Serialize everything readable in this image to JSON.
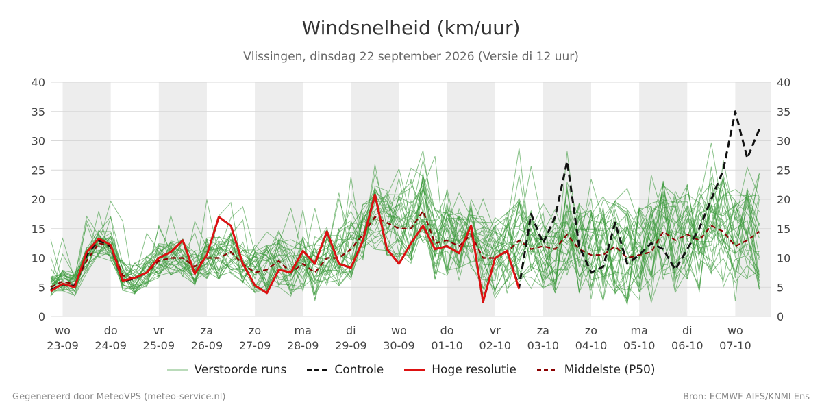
{
  "title": "Windsnelheid (km/uur)",
  "subtitle": "Vlissingen, dinsdag 22 september 2026 (Versie di 12 uur)",
  "footer_left": "Gegenereerd door MeteoVPS (meteo-service.nl)",
  "footer_right": "Bron: ECMWF AIFS/KNMI Ens",
  "legend": [
    {
      "label": "Verstoorde runs",
      "color": "#3a9a3a",
      "style": "thin"
    },
    {
      "label": "Controle",
      "color": "#111111",
      "style": "dashed"
    },
    {
      "label": "Hoge resolutie",
      "color": "#dd1111",
      "style": "solid"
    },
    {
      "label": "Middelste (P50)",
      "color": "#8b0000",
      "style": "dashed"
    }
  ],
  "chart_data": {
    "type": "line",
    "ylim": [
      0,
      40
    ],
    "yticks": [
      0,
      5,
      10,
      15,
      20,
      25,
      30,
      35,
      40
    ],
    "xlim": [
      -0.25,
      14.75
    ],
    "grid": true,
    "x_ticks": [
      {
        "day": "wo",
        "date": "23-09"
      },
      {
        "day": "do",
        "date": "24-09"
      },
      {
        "day": "vr",
        "date": "25-09"
      },
      {
        "day": "za",
        "date": "26-09"
      },
      {
        "day": "zo",
        "date": "27-09"
      },
      {
        "day": "ma",
        "date": "28-09"
      },
      {
        "day": "di",
        "date": "29-09"
      },
      {
        "day": "wo",
        "date": "30-09"
      },
      {
        "day": "do",
        "date": "01-10"
      },
      {
        "day": "vr",
        "date": "02-10"
      },
      {
        "day": "za",
        "date": "03-10"
      },
      {
        "day": "zo",
        "date": "04-10"
      },
      {
        "day": "ma",
        "date": "05-10"
      },
      {
        "day": "di",
        "date": "06-10"
      },
      {
        "day": "wo",
        "date": "07-10"
      }
    ],
    "ensemble_member_count": 30,
    "series": [
      {
        "name": "Hoge resolutie",
        "color": "#dd1111",
        "x": [
          -0.25,
          0,
          0.25,
          0.5,
          0.75,
          1,
          1.25,
          1.5,
          1.75,
          2,
          2.25,
          2.5,
          2.75,
          3,
          3.25,
          3.5,
          3.75,
          4,
          4.25,
          4.5,
          4.75,
          5,
          5.25,
          5.5,
          5.75,
          6,
          6.25,
          6.5,
          6.75,
          7,
          7.25,
          7.5,
          7.75,
          8,
          8.25,
          8.5,
          8.75,
          9,
          9.25,
          9.5
        ],
        "y": [
          4.3,
          5.6,
          5.0,
          11.0,
          13.3,
          12.2,
          6.1,
          6.6,
          7.5,
          10.0,
          11.0,
          13.0,
          7.3,
          10.5,
          17.0,
          15.5,
          9.0,
          5.3,
          4.0,
          8.0,
          7.5,
          11.2,
          9.0,
          14.5,
          9.0,
          8.3,
          13.0,
          20.8,
          11.5,
          9.0,
          12.5,
          15.5,
          11.5,
          12.0,
          10.8,
          15.5,
          2.5,
          10.0,
          11.2,
          4.7
        ]
      },
      {
        "name": "Controle",
        "color": "#111111",
        "x": [
          -0.25,
          0,
          0.25,
          0.5,
          0.75,
          1,
          1.25,
          1.5,
          1.75,
          2,
          2.25,
          2.5,
          2.75,
          3,
          3.25,
          3.5,
          3.75,
          4,
          4.25,
          4.5,
          4.75,
          5,
          5.25,
          5.5,
          5.75,
          6,
          6.25,
          6.5,
          6.75,
          7,
          7.25,
          7.5,
          7.75,
          8,
          8.25,
          8.5,
          8.75,
          9,
          9.25,
          9.5,
          9.75,
          10,
          10.25,
          10.5,
          10.75,
          11,
          11.25,
          11.5,
          11.75,
          12,
          12.25,
          12.5,
          12.75,
          13,
          13.25,
          13.5,
          13.75,
          14,
          14.25,
          14.5
        ],
        "y": [
          4.5,
          5.5,
          5.2,
          10.5,
          13.0,
          12.0,
          6.0,
          6.5,
          7.5,
          10.0,
          11.0,
          13.0,
          7.3,
          10.5,
          17.0,
          15.5,
          9.0,
          5.3,
          4.0,
          8.0,
          7.5,
          11.2,
          9.0,
          14.5,
          9.0,
          8.3,
          13.0,
          20.8,
          11.5,
          9.0,
          12.5,
          15.5,
          11.5,
          12.0,
          10.8,
          15.5,
          2.5,
          10.0,
          11.2,
          5.0,
          17.5,
          12.5,
          17.0,
          26.5,
          12.0,
          7.5,
          8.5,
          16.0,
          9.0,
          10.5,
          12.5,
          11.5,
          8.0,
          11.5,
          15.0,
          20.0,
          25.0,
          35.0,
          27.0,
          32.0
        ]
      },
      {
        "name": "Middelste (P50)",
        "color": "#8b0000",
        "x": [
          -0.25,
          0,
          0.25,
          0.5,
          0.75,
          1,
          1.25,
          1.5,
          1.75,
          2,
          2.25,
          2.5,
          2.75,
          3,
          3.25,
          3.5,
          3.75,
          4,
          4.25,
          4.5,
          4.75,
          5,
          5.25,
          5.5,
          5.75,
          6,
          6.25,
          6.5,
          6.75,
          7,
          7.25,
          7.5,
          7.75,
          8,
          8.25,
          8.5,
          8.75,
          9,
          9.25,
          9.5,
          9.75,
          10,
          10.25,
          10.5,
          10.75,
          11,
          11.25,
          11.5,
          11.75,
          12,
          12.25,
          12.5,
          12.75,
          13,
          13.25,
          13.5,
          13.75,
          14,
          14.25,
          14.5
        ],
        "y": [
          5.0,
          6.0,
          5.5,
          9.5,
          12.5,
          12.0,
          7.0,
          6.5,
          7.5,
          9.5,
          10.0,
          10.0,
          8.5,
          10.0,
          10.0,
          11.0,
          9.0,
          7.5,
          8.0,
          9.5,
          7.5,
          9.0,
          7.5,
          10.0,
          10.0,
          11.5,
          14.0,
          17.0,
          16.0,
          15.0,
          15.0,
          18.0,
          12.5,
          13.0,
          12.0,
          14.0,
          10.0,
          10.0,
          11.0,
          13.0,
          11.5,
          12.0,
          11.5,
          14.0,
          11.5,
          10.5,
          10.5,
          12.0,
          10.0,
          10.5,
          11.0,
          14.5,
          13.0,
          14.0,
          13.0,
          15.5,
          14.5,
          12.0,
          13.0,
          14.5
        ]
      }
    ]
  }
}
